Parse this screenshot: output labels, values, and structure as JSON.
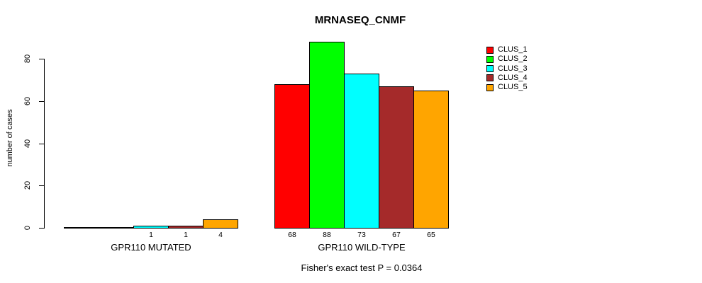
{
  "chart_data": {
    "type": "bar",
    "title": "MRNASEQ_CNMF",
    "ylabel": "number of cases",
    "xlabel": "",
    "ylim": [
      0,
      80
    ],
    "yticks": [
      0,
      20,
      40,
      60,
      80
    ],
    "grid": false,
    "legend_position": "top-right",
    "caption": "Fisher's exact test P = 0.0364",
    "categories": [
      "GPR110 MUTATED",
      "GPR110 WILD-TYPE"
    ],
    "series": [
      {
        "name": "CLUS_1",
        "color": "#FF0000",
        "values": [
          0,
          68
        ]
      },
      {
        "name": "CLUS_2",
        "color": "#00FF00",
        "values": [
          0,
          88
        ]
      },
      {
        "name": "CLUS_3",
        "color": "#00FFFF",
        "values": [
          1,
          73
        ]
      },
      {
        "name": "CLUS_4",
        "color": "#A52A2A",
        "values": [
          1,
          67
        ]
      },
      {
        "name": "CLUS_5",
        "color": "#FFA500",
        "values": [
          4,
          65
        ]
      }
    ],
    "groups": [
      {
        "label": "GPR110 MUTATED",
        "values": [
          0,
          0,
          1,
          1,
          4
        ],
        "bar_labels": [
          "",
          "",
          "1",
          "1",
          "4"
        ]
      },
      {
        "label": "GPR110 WILD-TYPE",
        "values": [
          68,
          88,
          73,
          67,
          65
        ],
        "bar_labels": [
          "68",
          "88",
          "73",
          "67",
          "65"
        ]
      }
    ]
  }
}
